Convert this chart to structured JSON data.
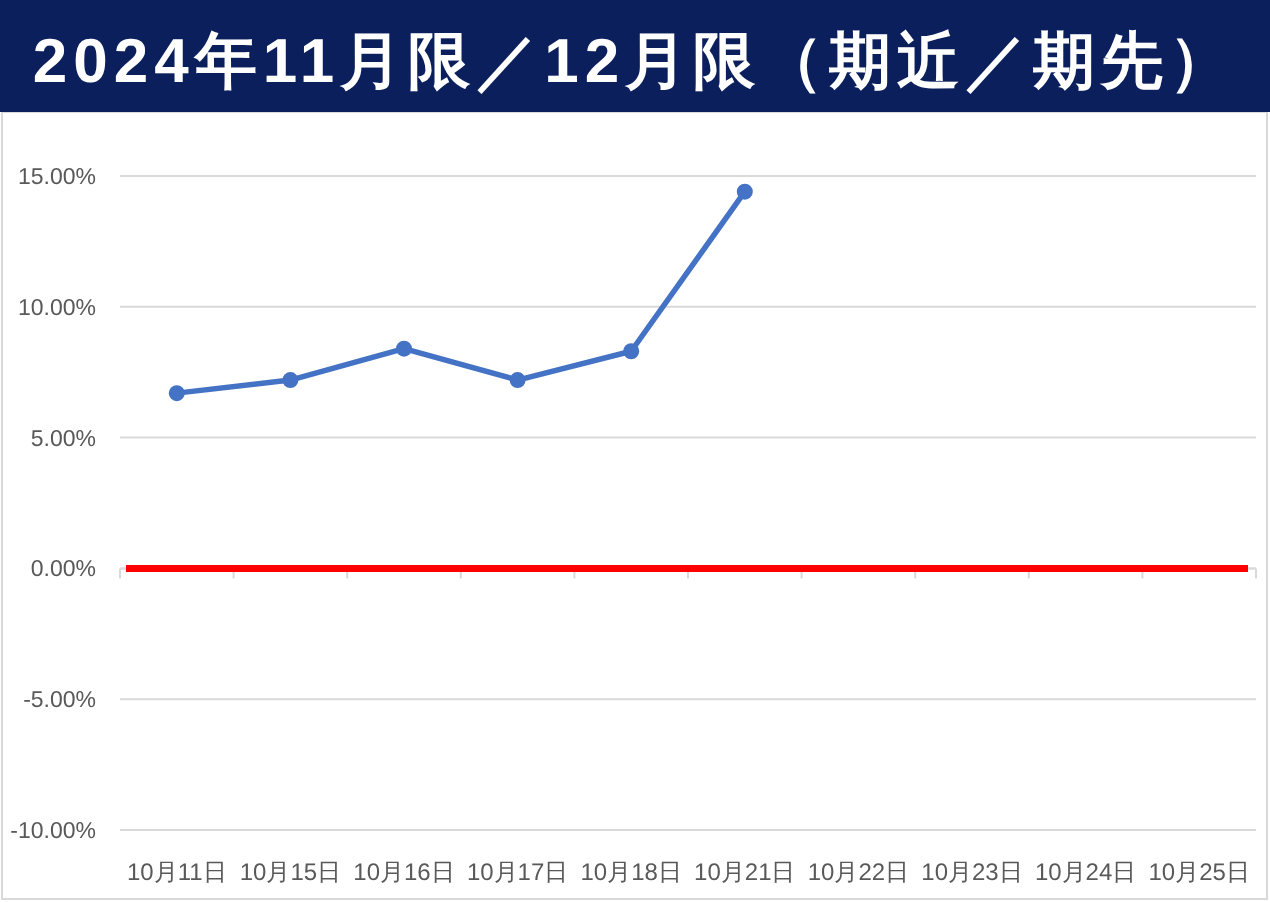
{
  "chart_data": {
    "type": "line",
    "title": "2024年11月限／12月限（期近／期先）",
    "categories": [
      "10月11日",
      "10月15日",
      "10月16日",
      "10月17日",
      "10月18日",
      "10月21日",
      "10月22日",
      "10月23日",
      "10月24日",
      "10月25日"
    ],
    "series": [
      {
        "color": "#4472c4",
        "values": [
          6.7,
          7.2,
          8.4,
          7.2,
          8.3,
          14.4,
          null,
          null,
          null,
          null
        ]
      }
    ],
    "ylim": [
      -10,
      15
    ],
    "yticks": [
      {
        "value": -10,
        "label": "-10.00%"
      },
      {
        "value": -5,
        "label": "-5.00%"
      },
      {
        "value": 0,
        "label": "0.00%"
      },
      {
        "value": 5,
        "label": "5.00%"
      },
      {
        "value": 10,
        "label": "10.00%"
      },
      {
        "value": 15,
        "label": "15.00%"
      }
    ],
    "ref_lines": [
      {
        "axis": "y",
        "value": 0,
        "color": "#ff0000"
      }
    ],
    "grid": "y",
    "marker": "circle",
    "line_style": "solid"
  }
}
